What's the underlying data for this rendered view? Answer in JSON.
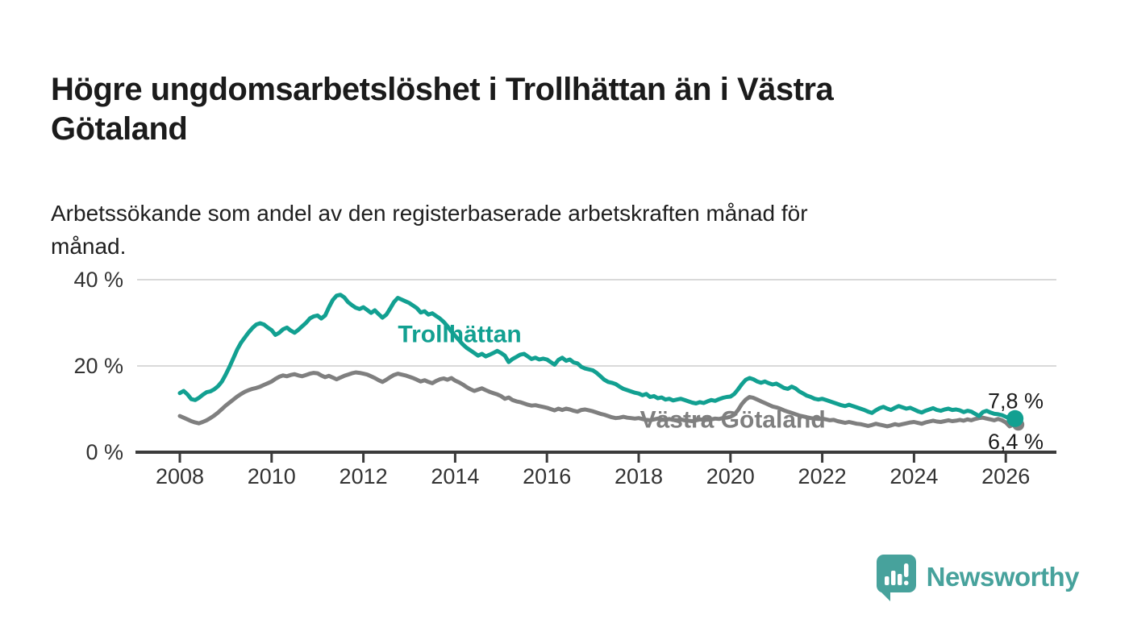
{
  "header": {
    "title": "Högre ungdomsarbetslöshet i Trollhättan än i Västra Götaland",
    "title_lines": [
      "Högre ungdomsarbetslöshet i Trollhättan än i Västra",
      "Götaland"
    ],
    "subtitle": "Arbetssökande som andel av den registerbaserade arbetskraften månad för månad.",
    "subtitle_lines": [
      "Arbetssökande som andel av den registerbaserade arbetskraften månad för",
      "månad."
    ]
  },
  "colors": {
    "trollhattan": "#12a091",
    "vastra_gotaland": "#7f7f7f",
    "axis": "#3b3b3b",
    "grid": "#d9d9d9",
    "title_text": "#1b1b1b",
    "tick_text": "#333333",
    "end_label_text": "#1c1c1c",
    "brand_teal": "#47a29c",
    "background": "#ffffff"
  },
  "chart_data": {
    "type": "line",
    "title": "Högre ungdomsarbetslöshet i Trollhättan än i Västra Götaland",
    "subtitle": "Arbetssökande som andel av den registerbaserade arbetskraften månad för månad.",
    "unit": "%",
    "start_year": 2008,
    "points_per_year": 12,
    "end_point": "2026-03",
    "xlim": [
      2007.07,
      2027.1
    ],
    "ylim": [
      0,
      42
    ],
    "grid": "horizontal-only",
    "legend_position": "inline-labels",
    "x_ticks": [
      2008,
      2010,
      2012,
      2014,
      2016,
      2018,
      2020,
      2022,
      2024,
      2026
    ],
    "x_tick_labels": [
      "2008",
      "2010",
      "2012",
      "2014",
      "2016",
      "2018",
      "2020",
      "2022",
      "2024",
      "2026"
    ],
    "y_ticks": [
      {
        "value": 0,
        "label": "0 %"
      },
      {
        "value": 20,
        "label": "20 %"
      },
      {
        "value": 40,
        "label": "40 %"
      }
    ],
    "series": [
      {
        "name": "Trollhättan",
        "color": "#12a091",
        "end_label": "7,8 %",
        "end_value": 7.8,
        "label_anchor": {
          "year": 2014.1,
          "pct": 25.5
        },
        "values": [
          13.7,
          14.2,
          13.4,
          12.3,
          12.1,
          12.6,
          13.3,
          13.9,
          14.1,
          14.6,
          15.3,
          16.4,
          18.0,
          19.8,
          21.8,
          23.8,
          25.4,
          26.6,
          27.8,
          28.8,
          29.6,
          29.9,
          29.6,
          28.9,
          28.3,
          27.2,
          27.7,
          28.5,
          28.9,
          28.2,
          27.7,
          28.4,
          29.2,
          30.0,
          31.0,
          31.5,
          31.7,
          31.0,
          31.7,
          33.6,
          35.3,
          36.3,
          36.5,
          35.9,
          34.8,
          34.1,
          33.5,
          33.2,
          33.6,
          33.0,
          32.3,
          32.9,
          32.0,
          31.2,
          31.9,
          33.3,
          34.8,
          35.8,
          35.4,
          35.0,
          34.6,
          34.0,
          33.4,
          32.4,
          32.7,
          31.9,
          32.2,
          31.6,
          31.0,
          30.2,
          29.2,
          28.0,
          27.0,
          26.0,
          25.0,
          24.2,
          23.6,
          23.0,
          22.4,
          22.8,
          22.2,
          22.6,
          23.0,
          23.5,
          23.0,
          22.4,
          20.9,
          21.6,
          22.1,
          22.6,
          22.8,
          22.2,
          21.6,
          21.9,
          21.5,
          21.7,
          21.5,
          20.9,
          20.3,
          21.4,
          21.9,
          21.2,
          21.5,
          20.8,
          20.6,
          19.8,
          19.4,
          19.2,
          19.0,
          18.4,
          17.6,
          16.8,
          16.3,
          16.1,
          15.8,
          15.2,
          14.7,
          14.4,
          14.1,
          13.8,
          13.6,
          13.2,
          13.5,
          12.8,
          13.0,
          12.5,
          12.7,
          12.2,
          12.4,
          12.0,
          12.2,
          12.4,
          12.1,
          11.8,
          11.5,
          11.3,
          11.6,
          11.4,
          11.8,
          12.1,
          11.9,
          12.3,
          12.6,
          12.8,
          12.9,
          13.5,
          14.6,
          15.8,
          16.8,
          17.2,
          16.9,
          16.4,
          16.1,
          16.4,
          16.0,
          15.7,
          15.9,
          15.4,
          14.9,
          14.7,
          15.2,
          14.8,
          14.1,
          13.6,
          13.1,
          12.8,
          12.4,
          12.2,
          12.4,
          12.1,
          11.8,
          11.5,
          11.2,
          10.9,
          10.7,
          11.0,
          10.7,
          10.4,
          10.1,
          9.8,
          9.4,
          9.1,
          9.7,
          10.2,
          10.5,
          10.1,
          9.8,
          10.3,
          10.7,
          10.4,
          10.1,
          10.3,
          9.9,
          9.5,
          9.2,
          9.6,
          9.9,
          10.2,
          9.8,
          9.6,
          9.9,
          10.1,
          9.8,
          9.9,
          9.7,
          9.3,
          9.6,
          9.4,
          8.9,
          8.4,
          9.3,
          9.6,
          9.2,
          8.9,
          8.8,
          8.6,
          8.2,
          7.9,
          7.8
        ]
      },
      {
        "name": "Västra Götaland",
        "color": "#7f7f7f",
        "end_label": "6,4 %",
        "end_value": 6.4,
        "label_anchor": {
          "year": 2020.05,
          "pct": 5.7
        },
        "values": [
          8.4,
          8.0,
          7.6,
          7.2,
          6.9,
          6.7,
          7.0,
          7.4,
          7.9,
          8.5,
          9.2,
          10.0,
          10.8,
          11.5,
          12.2,
          12.9,
          13.5,
          14.0,
          14.4,
          14.7,
          14.9,
          15.2,
          15.6,
          16.0,
          16.4,
          17.0,
          17.5,
          17.8,
          17.6,
          17.9,
          18.1,
          17.8,
          17.6,
          17.9,
          18.2,
          18.4,
          18.3,
          17.8,
          17.4,
          17.7,
          17.3,
          16.9,
          17.3,
          17.7,
          18.0,
          18.3,
          18.5,
          18.4,
          18.2,
          18.0,
          17.6,
          17.2,
          16.7,
          16.3,
          16.8,
          17.4,
          17.9,
          18.2,
          18.0,
          17.8,
          17.5,
          17.2,
          16.8,
          16.4,
          16.7,
          16.3,
          16.0,
          16.5,
          16.9,
          17.1,
          16.8,
          17.2,
          16.6,
          16.2,
          15.7,
          15.1,
          14.6,
          14.2,
          14.5,
          14.8,
          14.4,
          14.0,
          13.7,
          13.4,
          13.0,
          12.4,
          12.7,
          12.1,
          11.8,
          11.6,
          11.3,
          11.0,
          10.8,
          10.9,
          10.7,
          10.5,
          10.3,
          10.0,
          9.7,
          10.1,
          9.8,
          10.1,
          9.9,
          9.6,
          9.4,
          9.8,
          9.9,
          9.7,
          9.5,
          9.2,
          8.9,
          8.7,
          8.4,
          8.1,
          7.9,
          8.0,
          8.2,
          8.0,
          7.9,
          7.8,
          7.9,
          7.7,
          7.5,
          7.4,
          7.6,
          7.8,
          7.6,
          7.5,
          7.7,
          7.5,
          7.4,
          7.6,
          7.4,
          7.3,
          7.2,
          7.4,
          7.6,
          7.5,
          7.7,
          7.6,
          7.8,
          7.7,
          7.9,
          8.0,
          8.2,
          8.7,
          9.8,
          11.2,
          12.2,
          12.8,
          12.6,
          12.2,
          11.8,
          11.4,
          11.0,
          10.6,
          10.4,
          10.1,
          9.7,
          9.4,
          9.1,
          8.8,
          8.5,
          8.3,
          8.1,
          7.9,
          7.8,
          7.7,
          7.8,
          7.6,
          7.4,
          7.5,
          7.2,
          7.0,
          6.8,
          7.0,
          6.8,
          6.6,
          6.5,
          6.3,
          6.1,
          6.3,
          6.6,
          6.4,
          6.2,
          6.0,
          6.2,
          6.5,
          6.3,
          6.5,
          6.7,
          6.9,
          7.0,
          6.8,
          6.6,
          6.9,
          7.1,
          7.3,
          7.1,
          7.0,
          7.2,
          7.4,
          7.2,
          7.3,
          7.5,
          7.3,
          7.6,
          7.4,
          7.7,
          7.9,
          8.0,
          7.8,
          7.6,
          7.4,
          7.7,
          7.4,
          6.9,
          6.0,
          6.4
        ]
      }
    ]
  },
  "footer": {
    "brand": "Newsworthy",
    "logo_icon": "bar-chart-speech-bubble-icon"
  }
}
